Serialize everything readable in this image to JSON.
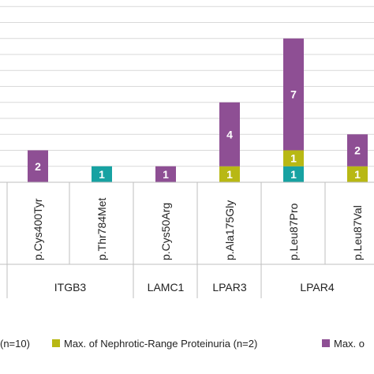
{
  "chart_data": {
    "type": "bar",
    "stacked": true,
    "title": "",
    "xlabel": "",
    "ylabel": "",
    "ylim": [
      0,
      11
    ],
    "grid": true,
    "legend_position": "bottom",
    "categories": [
      "p.Cys400Tyr",
      "p.Thr784Met",
      "p.Cys50Arg",
      "p.Ala175Gly",
      "p.Leu87Pro",
      "p.Leu87Val"
    ],
    "groups": [
      {
        "label": "ITGB3",
        "categories": [
          "p.Cys400Tyr",
          "p.Thr784Met"
        ]
      },
      {
        "label": "LAMC1",
        "categories": [
          "p.Cys50Arg"
        ]
      },
      {
        "label": "LPAR3",
        "categories": [
          "p.Ala175Gly"
        ]
      },
      {
        "label": "LPAR4",
        "categories": [
          "p.Leu87Pro",
          "p.Leu87Val"
        ]
      }
    ],
    "series": [
      {
        "name": "(n=10)",
        "color": "#17a2a2",
        "values": [
          0,
          1,
          0,
          0,
          1,
          0
        ],
        "labels": [
          "",
          "1",
          "",
          "",
          "1",
          ""
        ]
      },
      {
        "name": "Max. of Nephrotic-Range Proteinuria (n=2)",
        "color": "#b8b814",
        "values": [
          0,
          0,
          0,
          1,
          1,
          1
        ],
        "labels": [
          "",
          "",
          "",
          "1",
          "1",
          "1"
        ]
      },
      {
        "name": "Max. o",
        "color": "#8e4f94",
        "values": [
          2,
          0,
          1,
          4,
          7,
          2
        ],
        "labels": [
          "2",
          "",
          "1",
          "4",
          "7",
          "2"
        ]
      }
    ]
  }
}
